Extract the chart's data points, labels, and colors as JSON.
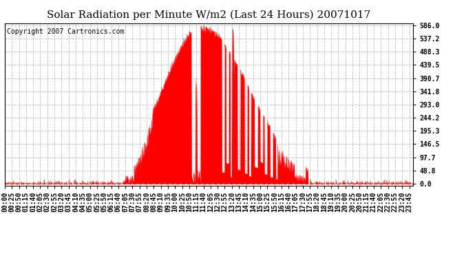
{
  "title": "Solar Radiation per Minute W/m2 (Last 24 Hours) 20071017",
  "copyright_text": "Copyright 2007 Cartronics.com",
  "yticks": [
    0.0,
    48.8,
    97.7,
    146.5,
    195.3,
    244.2,
    293.0,
    341.8,
    390.7,
    439.5,
    488.3,
    537.2,
    586.0
  ],
  "ymax": 586.0,
  "ymin": 0.0,
  "fill_color": "#FF0000",
  "line_color": "#FF0000",
  "bg_color": "#FFFFFF",
  "grid_color": "#BBBBBB",
  "dashed_line_color": "#FF0000",
  "title_fontsize": 11,
  "copyright_fontsize": 7,
  "tick_label_fontsize": 7
}
